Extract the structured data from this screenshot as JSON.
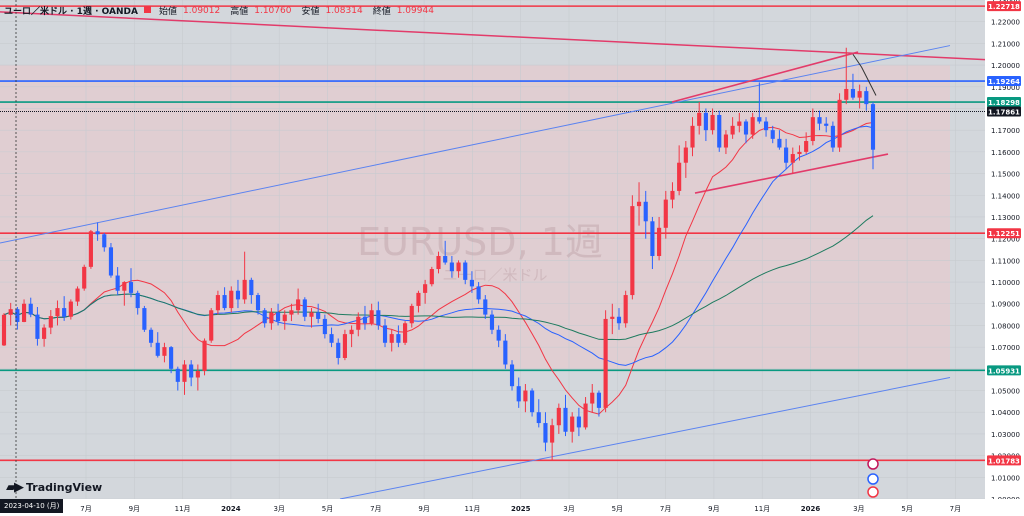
{
  "header": {
    "symbol": "ユーロ／米ドル · 1週 · OANDA",
    "open_label": "始値",
    "open": "1.09012",
    "high_label": "高値",
    "high": "1.10760",
    "low_label": "安値",
    "low": "1.08314",
    "close_label": "終値",
    "close": "1.09944"
  },
  "watermark": {
    "symbol": "EURUSD, 1週",
    "subtitle": "ユーロ／米ドル"
  },
  "brand": {
    "name": "TradingView"
  },
  "cursor_date": "2023-04-10 (月)",
  "chart_data": {
    "type": "candlestick",
    "title": "ユーロ／米ドル · 1週 · OANDA",
    "ylim": [
      1.0,
      1.23
    ],
    "y_ticks": [
      1.0,
      1.01,
      1.02,
      1.03,
      1.04,
      1.05,
      1.06,
      1.07,
      1.08,
      1.09,
      1.1,
      1.11,
      1.12,
      1.13,
      1.14,
      1.15,
      1.16,
      1.17,
      1.18,
      1.19,
      1.2,
      1.21,
      1.22,
      1.23
    ],
    "x_ticks": [
      "7月",
      "9月",
      "11月",
      "2024",
      "3月",
      "5月",
      "7月",
      "9月",
      "11月",
      "2025",
      "3月",
      "5月",
      "7月",
      "9月",
      "11月",
      "2026",
      "3月",
      "5月",
      "7月"
    ],
    "ohlc": [
      [
        1.0708,
        1.0857,
        1.0705,
        1.0849
      ],
      [
        1.0849,
        1.0904,
        1.08,
        1.0875
      ],
      [
        1.0875,
        1.0885,
        1.0781,
        1.0816
      ],
      [
        1.0816,
        1.092,
        1.0815,
        1.09
      ],
      [
        1.09,
        1.0928,
        1.0838,
        1.085
      ],
      [
        1.085,
        1.0885,
        1.0707,
        1.0738
      ],
      [
        1.0738,
        1.0805,
        1.0702,
        1.079
      ],
      [
        1.079,
        1.0871,
        1.076,
        1.0843
      ],
      [
        1.0843,
        1.0915,
        1.08,
        1.088
      ],
      [
        1.088,
        1.0935,
        1.0821,
        1.084
      ],
      [
        1.084,
        1.092,
        1.0827,
        1.091
      ],
      [
        1.091,
        1.098,
        1.089,
        1.097
      ],
      [
        1.097,
        1.108,
        1.096,
        1.107
      ],
      [
        1.107,
        1.124,
        1.1061,
        1.1234
      ],
      [
        1.1234,
        1.1275,
        1.119,
        1.122
      ],
      [
        1.122,
        1.1226,
        1.114,
        1.116
      ],
      [
        1.116,
        1.118,
        1.102,
        1.103
      ],
      [
        1.103,
        1.1069,
        1.094,
        1.096
      ],
      [
        1.096,
        1.1004,
        1.0891,
        1.1
      ],
      [
        1.1,
        1.1064,
        1.093,
        1.095
      ],
      [
        1.095,
        1.096,
        1.085,
        1.088
      ],
      [
        1.088,
        1.089,
        1.077,
        1.078
      ],
      [
        1.078,
        1.079,
        1.07,
        1.072
      ],
      [
        1.072,
        1.0769,
        1.0652,
        1.066
      ],
      [
        1.066,
        1.072,
        1.063,
        1.07
      ],
      [
        1.07,
        1.0705,
        1.058,
        1.06
      ],
      [
        1.06,
        1.061,
        1.05,
        1.054
      ],
      [
        1.054,
        1.064,
        1.048,
        1.062
      ],
      [
        1.062,
        1.064,
        1.052,
        1.056
      ],
      [
        1.056,
        1.062,
        1.05,
        1.059
      ],
      [
        1.059,
        1.074,
        1.057,
        1.073
      ],
      [
        1.073,
        1.088,
        1.072,
        1.087
      ],
      [
        1.087,
        1.096,
        1.085,
        1.094
      ],
      [
        1.094,
        1.0976,
        1.087,
        1.088
      ],
      [
        1.088,
        1.098,
        1.086,
        1.096
      ],
      [
        1.096,
        1.101,
        1.088,
        1.092
      ],
      [
        1.092,
        1.114,
        1.09,
        1.101
      ],
      [
        1.101,
        1.102,
        1.09,
        1.094
      ],
      [
        1.094,
        1.095,
        1.085,
        1.087
      ],
      [
        1.087,
        1.088,
        1.079,
        1.081
      ],
      [
        1.081,
        1.088,
        1.078,
        1.086
      ],
      [
        1.086,
        1.09,
        1.08,
        1.082
      ],
      [
        1.082,
        1.087,
        1.078,
        1.085
      ],
      [
        1.085,
        1.09,
        1.082,
        1.087
      ],
      [
        1.087,
        1.097,
        1.085,
        1.092
      ],
      [
        1.092,
        1.093,
        1.082,
        1.084
      ],
      [
        1.084,
        1.088,
        1.079,
        1.086
      ],
      [
        1.086,
        1.09,
        1.081,
        1.083
      ],
      [
        1.083,
        1.085,
        1.074,
        1.076
      ],
      [
        1.076,
        1.079,
        1.07,
        1.072
      ],
      [
        1.072,
        1.074,
        1.062,
        1.065
      ],
      [
        1.065,
        1.078,
        1.064,
        1.076
      ],
      [
        1.076,
        1.08,
        1.07,
        1.078
      ],
      [
        1.078,
        1.086,
        1.075,
        1.084
      ],
      [
        1.084,
        1.089,
        1.078,
        1.081
      ],
      [
        1.081,
        1.09,
        1.08,
        1.087
      ],
      [
        1.087,
        1.091,
        1.078,
        1.08
      ],
      [
        1.08,
        1.083,
        1.07,
        1.072
      ],
      [
        1.072,
        1.078,
        1.068,
        1.076
      ],
      [
        1.076,
        1.08,
        1.07,
        1.072
      ],
      [
        1.072,
        1.082,
        1.071,
        1.081
      ],
      [
        1.081,
        1.09,
        1.079,
        1.089
      ],
      [
        1.089,
        1.096,
        1.086,
        1.095
      ],
      [
        1.095,
        1.101,
        1.09,
        1.099
      ],
      [
        1.099,
        1.107,
        1.098,
        1.106
      ],
      [
        1.106,
        1.114,
        1.104,
        1.112
      ],
      [
        1.112,
        1.119,
        1.108,
        1.109
      ],
      [
        1.109,
        1.112,
        1.102,
        1.105
      ],
      [
        1.105,
        1.11,
        1.102,
        1.109
      ],
      [
        1.109,
        1.11,
        1.099,
        1.101
      ],
      [
        1.101,
        1.105,
        1.095,
        1.098
      ],
      [
        1.098,
        1.1,
        1.09,
        1.092
      ],
      [
        1.092,
        1.094,
        1.083,
        1.085
      ],
      [
        1.085,
        1.087,
        1.076,
        1.078
      ],
      [
        1.078,
        1.08,
        1.07,
        1.073
      ],
      [
        1.073,
        1.076,
        1.06,
        1.062
      ],
      [
        1.062,
        1.064,
        1.05,
        1.052
      ],
      [
        1.052,
        1.056,
        1.042,
        1.045
      ],
      [
        1.045,
        1.053,
        1.04,
        1.05
      ],
      [
        1.05,
        1.051,
        1.038,
        1.04
      ],
      [
        1.04,
        1.046,
        1.033,
        1.035
      ],
      [
        1.035,
        1.04,
        1.022,
        1.026
      ],
      [
        1.026,
        1.037,
        1.018,
        1.034
      ],
      [
        1.034,
        1.044,
        1.03,
        1.042
      ],
      [
        1.042,
        1.048,
        1.029,
        1.031
      ],
      [
        1.031,
        1.04,
        1.026,
        1.038
      ],
      [
        1.038,
        1.042,
        1.029,
        1.033
      ],
      [
        1.033,
        1.047,
        1.032,
        1.044
      ],
      [
        1.044,
        1.053,
        1.04,
        1.049
      ],
      [
        1.049,
        1.05,
        1.038,
        1.042
      ],
      [
        1.042,
        1.087,
        1.04,
        1.083
      ],
      [
        1.083,
        1.09,
        1.076,
        1.084
      ],
      [
        1.084,
        1.088,
        1.078,
        1.081
      ],
      [
        1.081,
        1.096,
        1.079,
        1.094
      ],
      [
        1.094,
        1.14,
        1.092,
        1.135
      ],
      [
        1.135,
        1.146,
        1.126,
        1.137
      ],
      [
        1.137,
        1.142,
        1.12,
        1.128
      ],
      [
        1.128,
        1.13,
        1.106,
        1.112
      ],
      [
        1.112,
        1.13,
        1.11,
        1.125
      ],
      [
        1.125,
        1.142,
        1.12,
        1.138
      ],
      [
        1.138,
        1.146,
        1.134,
        1.142
      ],
      [
        1.142,
        1.163,
        1.14,
        1.155
      ],
      [
        1.155,
        1.165,
        1.148,
        1.162
      ],
      [
        1.162,
        1.176,
        1.158,
        1.172
      ],
      [
        1.172,
        1.183,
        1.168,
        1.178
      ],
      [
        1.178,
        1.18,
        1.165,
        1.17
      ],
      [
        1.17,
        1.18,
        1.168,
        1.177
      ],
      [
        1.177,
        1.179,
        1.16,
        1.162
      ],
      [
        1.162,
        1.17,
        1.159,
        1.168
      ],
      [
        1.168,
        1.176,
        1.166,
        1.172
      ],
      [
        1.172,
        1.178,
        1.169,
        1.174
      ],
      [
        1.174,
        1.175,
        1.164,
        1.168
      ],
      [
        1.168,
        1.178,
        1.166,
        1.176
      ],
      [
        1.176,
        1.192,
        1.173,
        1.174
      ],
      [
        1.174,
        1.176,
        1.167,
        1.17
      ],
      [
        1.17,
        1.172,
        1.164,
        1.166
      ],
      [
        1.166,
        1.17,
        1.161,
        1.162
      ],
      [
        1.162,
        1.166,
        1.152,
        1.155
      ],
      [
        1.155,
        1.162,
        1.15,
        1.159
      ],
      [
        1.159,
        1.163,
        1.156,
        1.16
      ],
      [
        1.16,
        1.169,
        1.159,
        1.165
      ],
      [
        1.165,
        1.18,
        1.163,
        1.176
      ],
      [
        1.176,
        1.179,
        1.17,
        1.173
      ],
      [
        1.173,
        1.176,
        1.169,
        1.172
      ],
      [
        1.172,
        1.174,
        1.16,
        1.162
      ],
      [
        1.162,
        1.187,
        1.16,
        1.184
      ],
      [
        1.184,
        1.208,
        1.182,
        1.189
      ],
      [
        1.189,
        1.196,
        1.184,
        1.185
      ],
      [
        1.185,
        1.191,
        1.18,
        1.188
      ],
      [
        1.188,
        1.19,
        1.179,
        1.182
      ],
      [
        1.182,
        1.183,
        1.152,
        1.161
      ]
    ],
    "moving_averages": [
      {
        "name": "",
        "color": "#f23645"
      },
      {
        "name": "",
        "color": "#2962ff"
      },
      {
        "name": "",
        "color": "#1e7b5f"
      }
    ],
    "horizontal_levels": [
      {
        "price": 1.22718,
        "color": "#f23645",
        "label": "1.22718"
      },
      {
        "price": 1.19264,
        "color": "#2962ff",
        "label": "1.19264"
      },
      {
        "price": 1.18298,
        "color": "#089981",
        "label": "1.18298"
      },
      {
        "price": 1.17861,
        "color": "#131722",
        "label": "1.17861",
        "current": true
      },
      {
        "price": 1.12251,
        "color": "#f23645",
        "label": "1.12251"
      },
      {
        "price": 1.05931,
        "color": "#089981",
        "label": "1.05931"
      },
      {
        "price": 1.01783,
        "color": "#f23645",
        "label": "1.01783"
      }
    ],
    "grid": true,
    "colors": {
      "up": "#f23645",
      "down": "#2962ff",
      "bg_shade": "#e4c8cc"
    }
  }
}
